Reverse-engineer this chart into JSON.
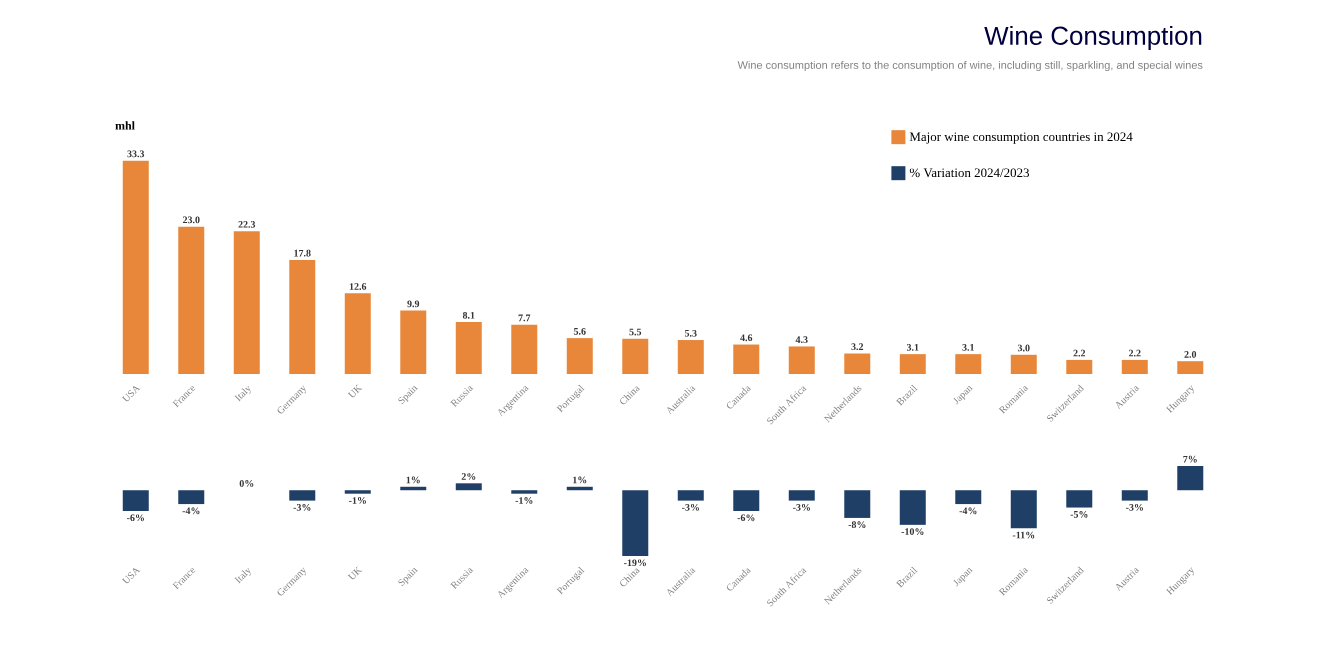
{
  "chart_data": [
    {
      "type": "bar",
      "title": "Wine Consumption",
      "subtitle": "Wine consumption refers to the consumption of wine, including still, sparkling, and special wines",
      "ylabel": "mhl",
      "categories": [
        "USA",
        "France",
        "Italy",
        "Germany",
        "UK",
        "Spain",
        "Russia",
        "Argentina",
        "Portugal",
        "China",
        "Australia",
        "Canada",
        "South Africa",
        "Netherlands",
        "Brazil",
        "Japan",
        "Romania",
        "Switzerland",
        "Austria",
        "Hungary"
      ],
      "series": [
        {
          "name": "Major wine consumption countries in 2024",
          "color": "#e8873a",
          "values": [
            33.3,
            23.0,
            22.3,
            17.8,
            12.6,
            9.9,
            8.1,
            7.7,
            5.6,
            5.5,
            5.3,
            4.6,
            4.3,
            3.2,
            3.1,
            3.1,
            3.0,
            2.2,
            2.2,
            2.0
          ],
          "value_labels": [
            "33.3",
            "23.0",
            "22.3",
            "17.8",
            "12.6",
            "9.9",
            "8.1",
            "7.7",
            "5.6",
            "5.5",
            "5.3",
            "4.6",
            "4.3",
            "3.2",
            "3.1",
            "3.1",
            "3.0",
            "2.2",
            "2.2",
            "2.0"
          ]
        }
      ],
      "legend": "top right"
    },
    {
      "type": "bar",
      "categories": [
        "USA",
        "France",
        "Italy",
        "Germany",
        "UK",
        "Spain",
        "Russia",
        "Argentina",
        "Portugal",
        "China",
        "Australia",
        "Canada",
        "South Africa",
        "Netherlands",
        "Brazil",
        "Japan",
        "Romania",
        "Switzerland",
        "Austria",
        "Hungary"
      ],
      "series": [
        {
          "name": "% Variation 2024/2023",
          "color": "#1f3f66",
          "values": [
            -6,
            -4,
            0,
            -3,
            -1,
            1,
            2,
            -1,
            1,
            -19,
            -3,
            -6,
            -3,
            -8,
            -10,
            -4,
            -11,
            -5,
            -3,
            7
          ],
          "value_labels": [
            "-6%",
            "-4%",
            "0%",
            "-3%",
            "-1%",
            "1%",
            "2%",
            "-1%",
            "1%",
            "-19%",
            "-3%",
            "-6%",
            "-3%",
            "-8%",
            "-10%",
            "-4%",
            "-11%",
            "-5%",
            "-3%",
            "7%"
          ]
        }
      ],
      "legend": "top right"
    }
  ]
}
